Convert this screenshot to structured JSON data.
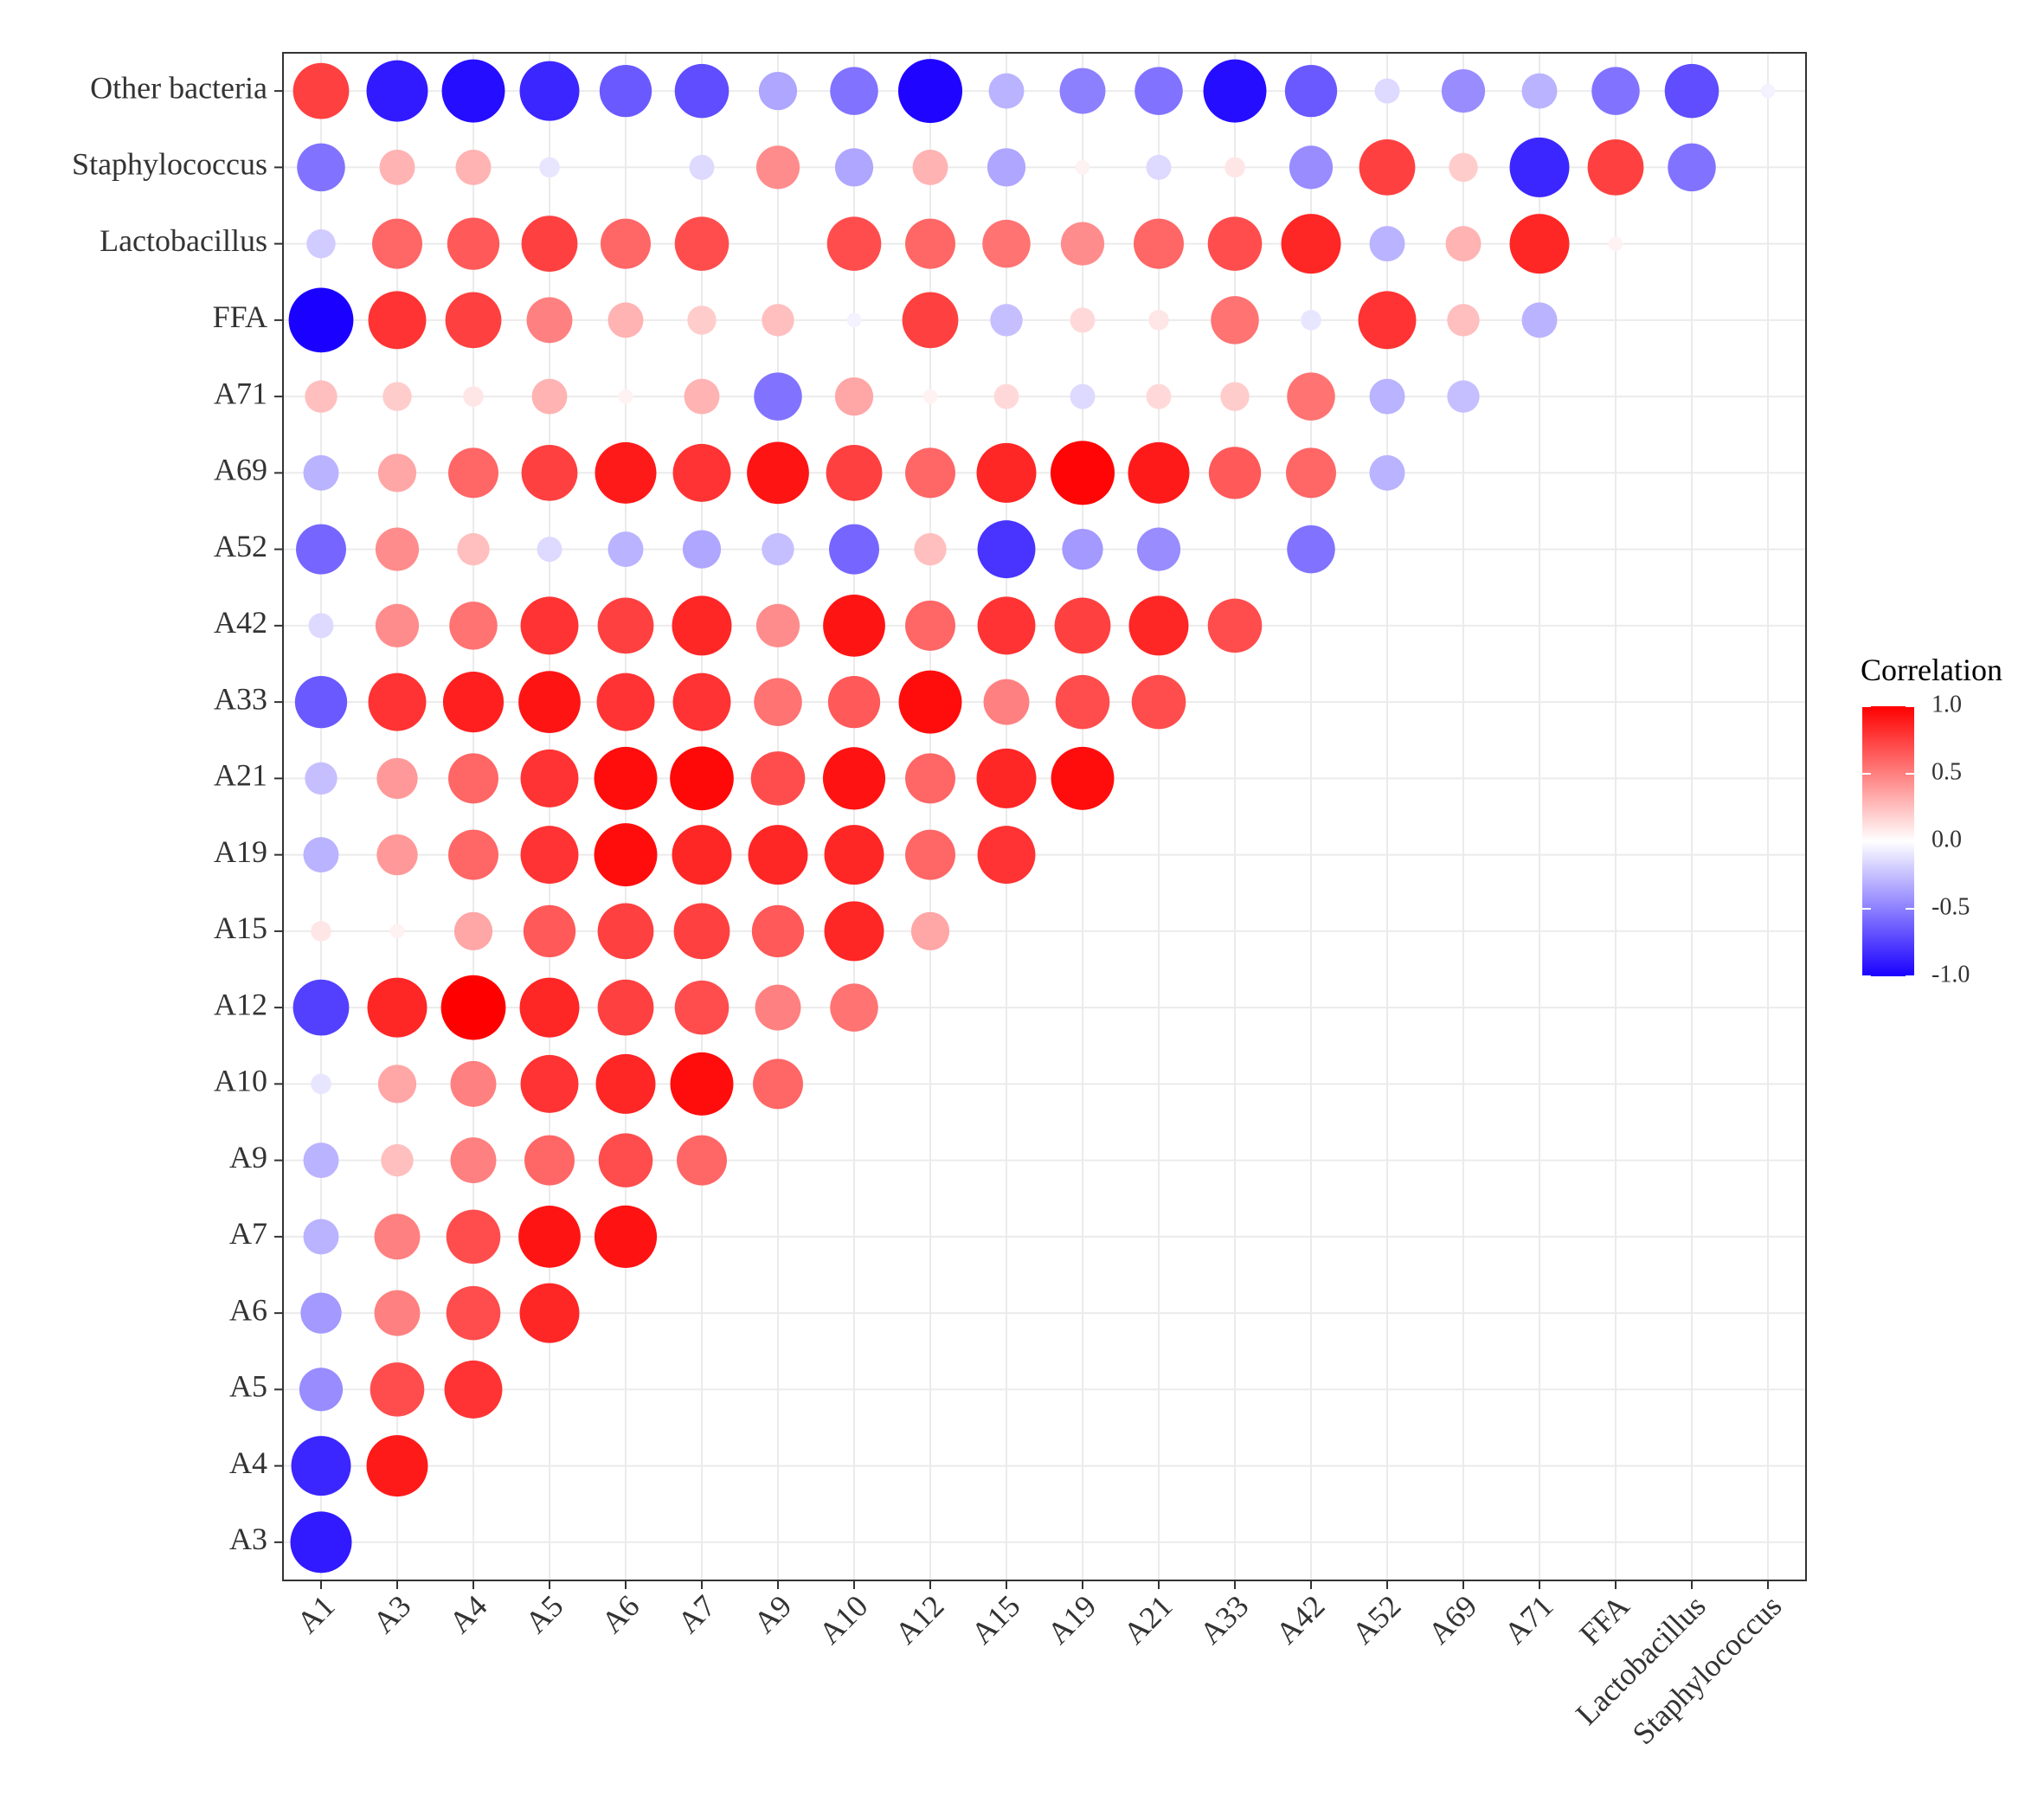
{
  "chart_data": {
    "type": "heatmap",
    "title": "",
    "xlabel": "",
    "ylabel": "",
    "x_labels": [
      "A1",
      "A3",
      "A4",
      "A5",
      "A6",
      "A7",
      "A9",
      "A10",
      "A12",
      "A15",
      "A19",
      "A21",
      "A33",
      "A42",
      "A52",
      "A69",
      "A71",
      "FFA",
      "Lactobacillus",
      "Staphylococcus"
    ],
    "y_labels": [
      "Other bacteria",
      "Staphylococcus",
      "Lactobacillus",
      "FFA",
      "A71",
      "A69",
      "A52",
      "A42",
      "A33",
      "A21",
      "A19",
      "A15",
      "A12",
      "A10",
      "A9",
      "A7",
      "A6",
      "A5",
      "A4",
      "A3"
    ],
    "rows": {
      "Other bacteria": [
        0.75,
        -0.9,
        -0.95,
        -0.85,
        -0.65,
        -0.7,
        -0.35,
        -0.55,
        -0.98,
        -0.3,
        -0.5,
        -0.55,
        -0.95,
        -0.65,
        -0.15,
        -0.45,
        -0.3,
        -0.55,
        -0.7,
        -0.05
      ],
      "Staphylococcus": [
        -0.55,
        0.3,
        0.3,
        -0.1,
        0.0,
        -0.15,
        0.45,
        -0.35,
        0.3,
        -0.35,
        0.05,
        -0.15,
        0.1,
        -0.45,
        0.75,
        0.2,
        -0.85,
        0.75,
        -0.55
      ],
      "Lactobacillus": [
        -0.2,
        0.6,
        0.65,
        0.75,
        0.6,
        0.7,
        0.0,
        0.7,
        0.6,
        0.55,
        0.45,
        0.6,
        0.7,
        0.85,
        -0.3,
        0.3,
        0.85,
        0.05
      ],
      "FFA": [
        -1.0,
        0.8,
        0.75,
        0.5,
        0.3,
        0.2,
        0.25,
        -0.05,
        0.75,
        -0.25,
        0.15,
        0.1,
        0.55,
        -0.1,
        0.8,
        0.25,
        -0.3
      ],
      "A71": [
        0.25,
        0.2,
        0.1,
        0.3,
        0.05,
        0.3,
        -0.55,
        0.35,
        0.05,
        0.15,
        -0.15,
        0.15,
        0.2,
        0.55,
        -0.3,
        -0.25
      ],
      "A69": [
        -0.3,
        0.35,
        0.6,
        0.75,
        0.9,
        0.8,
        0.92,
        0.75,
        0.6,
        0.85,
        0.98,
        0.9,
        0.65,
        0.6,
        -0.3
      ],
      "A52": [
        -0.6,
        0.45,
        0.25,
        -0.15,
        -0.3,
        -0.35,
        -0.25,
        -0.6,
        0.25,
        -0.8,
        -0.4,
        -0.45,
        0.0,
        -0.55
      ],
      "A42": [
        -0.15,
        0.45,
        0.55,
        0.8,
        0.75,
        0.85,
        0.45,
        0.92,
        0.6,
        0.8,
        0.75,
        0.85,
        0.7
      ],
      "A33": [
        -0.65,
        0.8,
        0.88,
        0.92,
        0.8,
        0.8,
        0.55,
        0.65,
        0.95,
        0.5,
        0.7,
        0.7
      ],
      "A21": [
        -0.25,
        0.4,
        0.6,
        0.8,
        0.95,
        0.97,
        0.7,
        0.93,
        0.6,
        0.85,
        0.95
      ],
      "A19": [
        -0.3,
        0.4,
        0.6,
        0.8,
        0.95,
        0.85,
        0.85,
        0.85,
        0.6,
        0.8
      ],
      "A15": [
        0.1,
        0.05,
        0.35,
        0.65,
        0.75,
        0.75,
        0.65,
        0.85,
        0.35
      ],
      "A12": [
        -0.75,
        0.85,
        1.0,
        0.85,
        0.75,
        0.7,
        0.5,
        0.55
      ],
      "A10": [
        -0.1,
        0.35,
        0.5,
        0.8,
        0.85,
        0.95,
        0.6
      ],
      "A9": [
        -0.3,
        0.25,
        0.5,
        0.6,
        0.7,
        0.6
      ],
      "A7": [
        -0.3,
        0.5,
        0.7,
        0.92,
        0.93
      ],
      "A6": [
        -0.4,
        0.5,
        0.7,
        0.85
      ],
      "A5": [
        -0.45,
        0.7,
        0.8
      ],
      "A4": [
        -0.85,
        0.9
      ],
      "A3": [
        -0.9
      ]
    },
    "legend": {
      "title": "Correlation",
      "ticks": [
        "1.0",
        "0.5",
        "0.0",
        "-0.5",
        "-1.0"
      ],
      "range": [
        -1,
        1
      ],
      "colors": {
        "low": "#1a00ff",
        "mid": "#ffffff",
        "high": "#ff0000"
      },
      "placement": "right"
    },
    "grid": true
  }
}
